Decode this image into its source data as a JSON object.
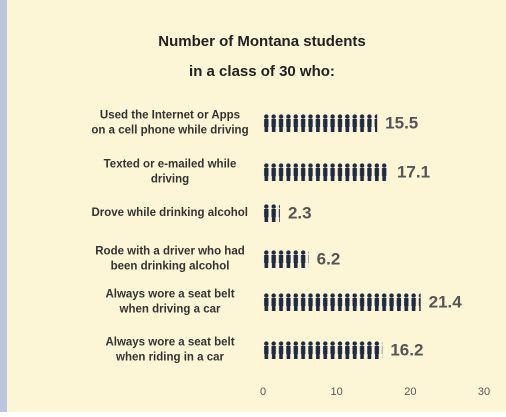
{
  "chart_data": {
    "type": "pictograph-bar",
    "title": [
      "Number of Montana students",
      "in a class of 30 who:"
    ],
    "categories": [
      [
        "Used the Internet or Apps",
        "on a cell phone while driving"
      ],
      [
        "Texted or e-mailed while",
        "driving"
      ],
      [
        "Drove while drinking alcohol"
      ],
      [
        "Rode with a driver who had",
        "been drinking alcohol"
      ],
      [
        "Always wore a seat belt",
        "when driving a car"
      ],
      [
        "Always wore a seat belt",
        "when riding in a car"
      ]
    ],
    "values": [
      15.5,
      17.1,
      2.3,
      6.2,
      21.4,
      16.2
    ],
    "color": "#1f2a44",
    "xlim": [
      0,
      30
    ],
    "xticks": [
      0,
      10,
      20,
      30
    ]
  }
}
